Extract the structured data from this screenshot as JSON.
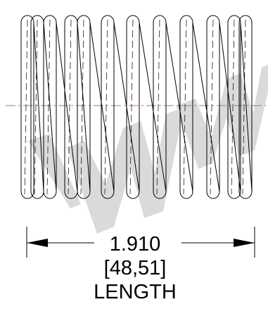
{
  "drawing": {
    "dimension": {
      "value_in": "1.910",
      "value_mm": "[48,51]",
      "label": "LENGTH"
    },
    "watermark": {
      "text": "IWM",
      "color": "#d4d4d4"
    },
    "colors": {
      "line": "#000000",
      "centerline": "#b07a4e",
      "background": "#ffffff"
    }
  }
}
